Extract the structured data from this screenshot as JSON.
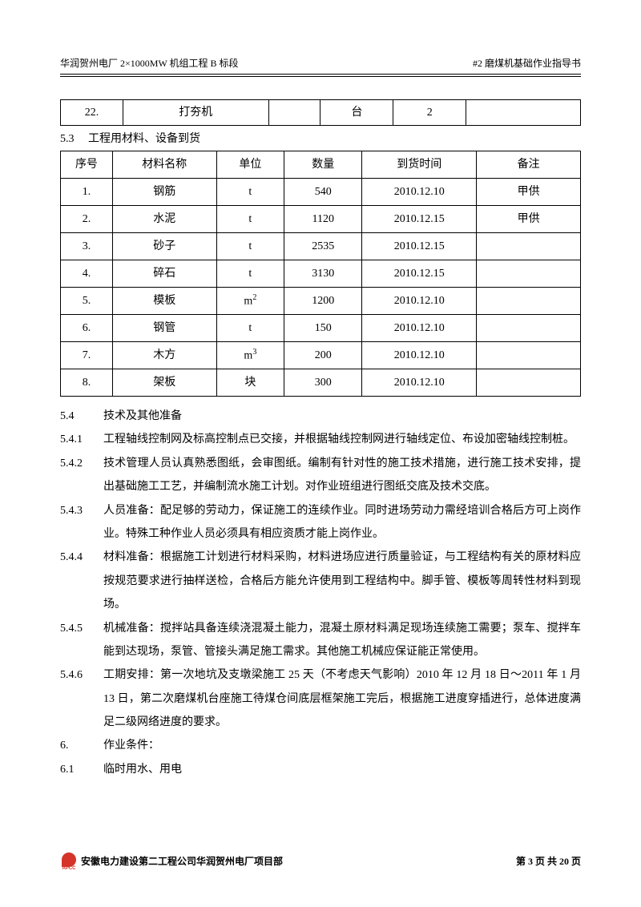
{
  "header": {
    "left": "华润贺州电厂 2×1000MW 机组工程 B 标段",
    "right": "#2 磨煤机基础作业指导书"
  },
  "table1_row": {
    "c1": "22.",
    "c2": "打夯机",
    "c3": "",
    "c4": "台",
    "c5": "2",
    "c6": ""
  },
  "section53": "5.3　 工程用材料、设备到货",
  "table2": {
    "header": {
      "c1": "序号",
      "c2": "材料名称",
      "c3": "单位",
      "c4": "数量",
      "c5": "到货时间",
      "c6": "备注"
    },
    "rows": [
      {
        "c1": "1.",
        "c2": "钢筋",
        "c3": "t",
        "c4": "540",
        "c5": "2010.12.10",
        "c6": "甲供"
      },
      {
        "c1": "2.",
        "c2": "水泥",
        "c3": "t",
        "c4": "1120",
        "c5": "2010.12.15",
        "c6": "甲供"
      },
      {
        "c1": "3.",
        "c2": "砂子",
        "c3": "t",
        "c4": "2535",
        "c5": "2010.12.15",
        "c6": ""
      },
      {
        "c1": "4.",
        "c2": "碎石",
        "c3": "t",
        "c4": "3130",
        "c5": "2010.12.15",
        "c6": ""
      },
      {
        "c1": "5.",
        "c2": "模板",
        "c3_html": "m<sup>2</sup>",
        "c4": "1200",
        "c5": "2010.12.10",
        "c6": ""
      },
      {
        "c1": "6.",
        "c2": "钢管",
        "c3": "t",
        "c4": "150",
        "c5": "2010.12.10",
        "c6": ""
      },
      {
        "c1": "7.",
        "c2": "木方",
        "c3_html": "m<sup>3</sup>",
        "c4": "200",
        "c5": "2010.12.10",
        "c6": ""
      },
      {
        "c1": "8.",
        "c2": "架板",
        "c3": "块",
        "c4": "300",
        "c5": "2010.12.10",
        "c6": ""
      }
    ]
  },
  "paras": [
    {
      "num": "5.4",
      "txt": "技术及其他准备"
    },
    {
      "num": "5.4.1",
      "txt": "工程轴线控制网及标高控制点已交接，并根据轴线控制网进行轴线定位、布设加密轴线控制桩。"
    },
    {
      "num": "5.4.2",
      "txt": "技术管理人员认真熟悉图纸，会审图纸。编制有针对性的施工技术措施，进行施工技术安排，提出基础施工工艺，并编制流水施工计划。对作业班组进行图纸交底及技术交底。"
    },
    {
      "num": "5.4.3",
      "txt": "人员准备：配足够的劳动力，保证施工的连续作业。同时进场劳动力需经培训合格后方可上岗作业。特殊工种作业人员必须具有相应资质才能上岗作业。"
    },
    {
      "num": "5.4.4",
      "txt": "材料准备：根据施工计划进行材料采购，材料进场应进行质量验证，与工程结构有关的原材料应按规范要求进行抽样送检，合格后方能允许使用到工程结构中。脚手管、模板等周转性材料到现场。"
    },
    {
      "num": "5.4.5",
      "txt": "机械准备：搅拌站具备连续浇混凝土能力，混凝土原材料满足现场连续施工需要；泵车、搅拌车能到达现场，泵管、管接头满足施工需求。其他施工机械应保证能正常使用。"
    },
    {
      "num": "5.4.6",
      "txt": "工期安排：第一次地坑及支墩梁施工 25 天（不考虑天气影响）2010 年 12 月 18 日～2011 年 1 月 13 日，第二次磨煤机台座施工待煤仓间底层框架施工完后，根据施工进度穿插进行，总体进度满足二级网络进度的要求。"
    },
    {
      "num": "6.",
      "txt": "作业条件："
    },
    {
      "num": "6.1",
      "txt": "临时用水、用电"
    }
  ],
  "footer": {
    "left": "安徽电力建设第二工程公司华润贺州电厂项目部",
    "right": "第 3 页 共 20 页",
    "logo_text": "APCC"
  }
}
